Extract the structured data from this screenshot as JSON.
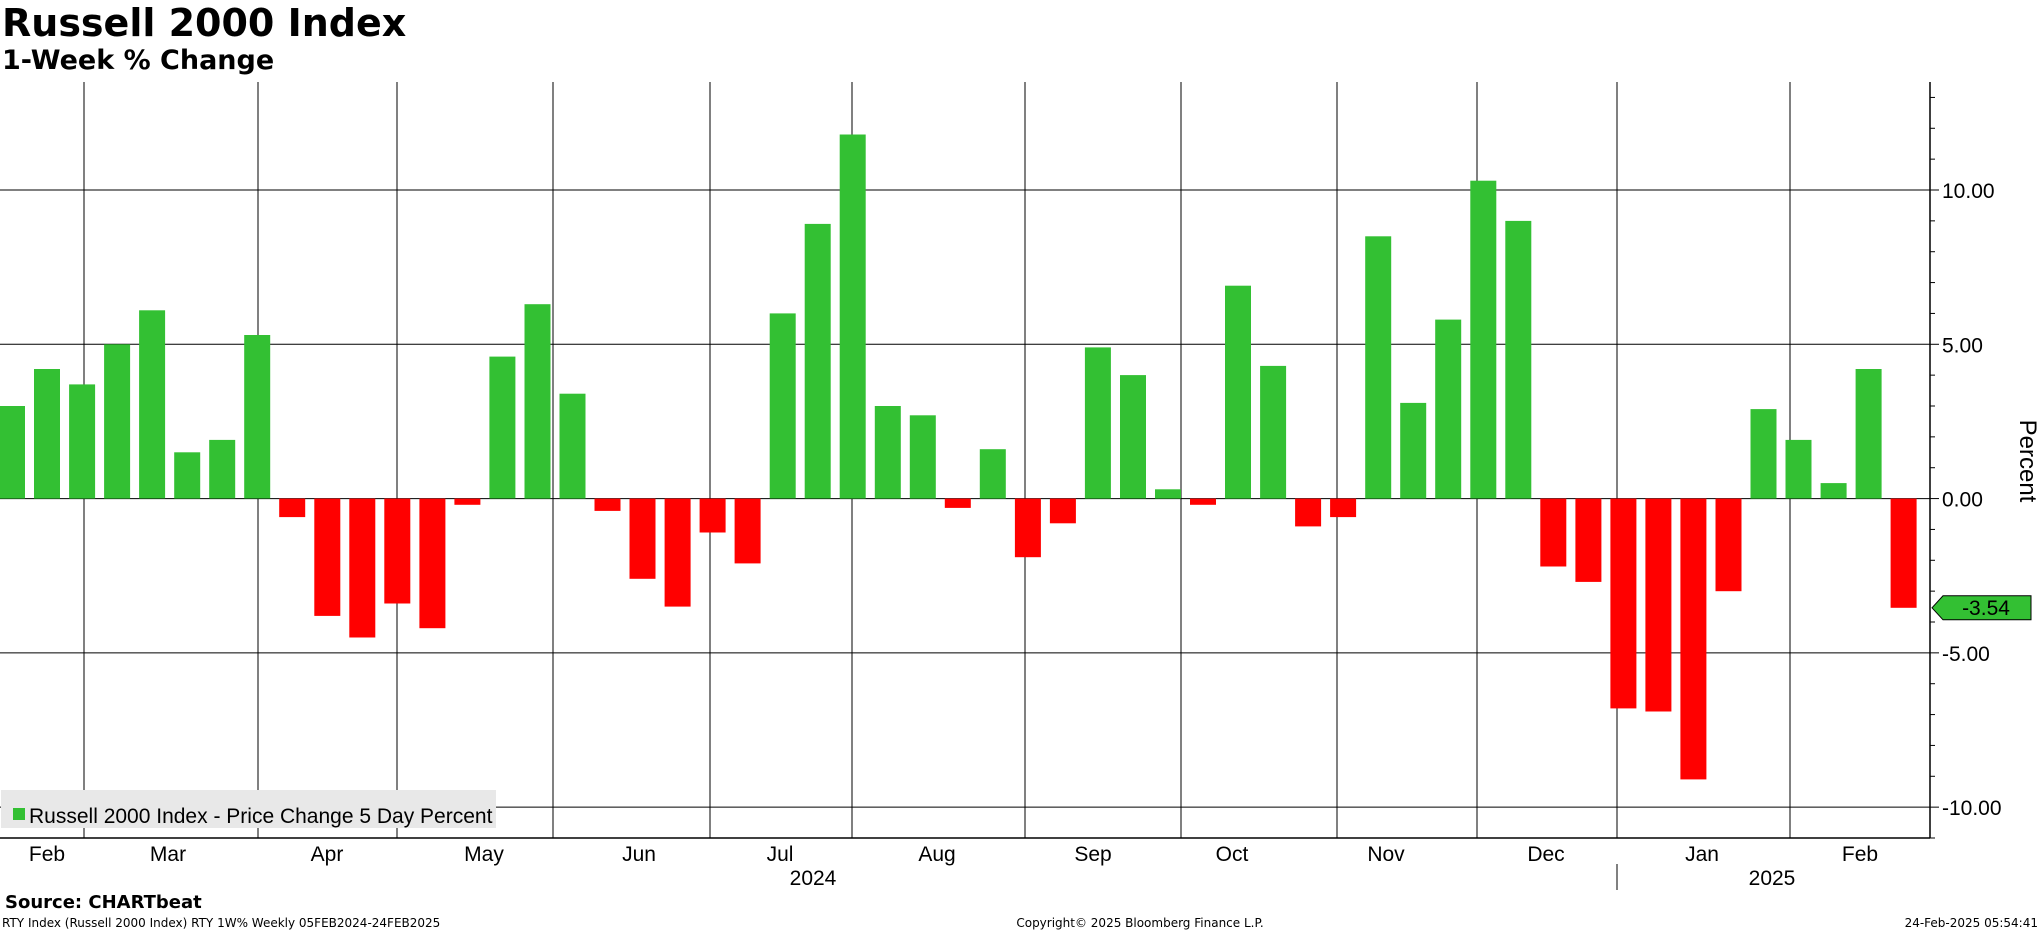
{
  "header": {
    "title": "Russell 2000 Index",
    "subtitle": "1-Week % Change"
  },
  "footer": {
    "source": "Source: CHARTbeat",
    "left": "RTY Index (Russell 2000 Index) RTY 1W%  Weekly 05FEB2024-24FEB2025",
    "center": "Copyright© 2025 Bloomberg Finance L.P.",
    "right": "24-Feb-2025 05:54:41"
  },
  "colors": {
    "positive": "#33c033",
    "negative": "#ff0000",
    "grid": "#000000",
    "legend_bg": "#e8e8e8",
    "last_label_bg": "#33c033"
  },
  "chart_data": {
    "type": "bar",
    "title": "Russell 2000 Index",
    "subtitle": "1-Week % Change",
    "ylabel": "Percent",
    "ylim": [
      -11.0,
      13.5
    ],
    "yticks": [
      10.0,
      5.0,
      0.0,
      -5.0,
      -10.0
    ],
    "ytick_labels": [
      "10.00",
      "5.00",
      "0.00",
      "-5.00",
      "-10.00"
    ],
    "y_axis_side": "right",
    "grid": true,
    "legend_position": "bottom-left",
    "month_labels": [
      "Feb",
      "Mar",
      "Apr",
      "May",
      "Jun",
      "Jul",
      "Aug",
      "Sep",
      "Oct",
      "Nov",
      "Dec",
      "Jan",
      "Feb"
    ],
    "year_labels": [
      "2024",
      "2025"
    ],
    "last_value_label": "-3.54",
    "series": [
      {
        "name": "Russell 2000 Index - Price Change 5 Day Percent",
        "values": [
          3.0,
          4.2,
          3.7,
          5.0,
          6.1,
          1.5,
          1.9,
          5.3,
          -0.6,
          -3.8,
          -4.5,
          -3.4,
          -4.2,
          -0.2,
          4.6,
          6.3,
          3.4,
          -0.4,
          -2.6,
          -3.5,
          -1.1,
          -2.1,
          6.0,
          8.9,
          11.8,
          3.0,
          2.7,
          -0.3,
          1.6,
          -1.9,
          -0.8,
          4.9,
          4.0,
          0.3,
          -0.2,
          6.9,
          4.3,
          -0.9,
          -0.6,
          8.5,
          3.1,
          5.8,
          10.3,
          9.0,
          -2.2,
          -2.7,
          -6.8,
          -6.9,
          -9.1,
          -3.0,
          2.9,
          1.9,
          0.5,
          4.2,
          -3.54
        ]
      }
    ]
  }
}
